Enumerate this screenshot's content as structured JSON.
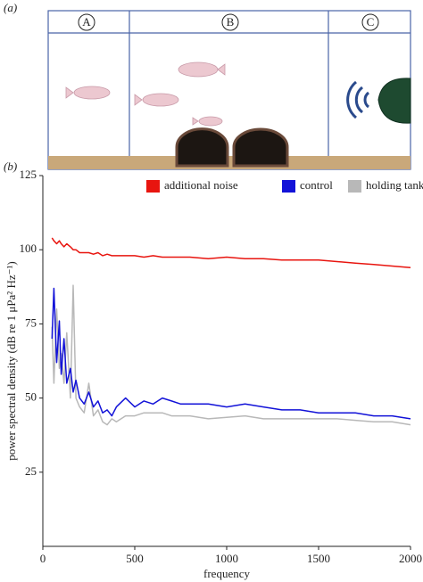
{
  "panel_labels": [
    "(a)",
    "(b)"
  ],
  "tank_sections": [
    "A",
    "B",
    "C"
  ],
  "chart_data": {
    "type": "line",
    "x_label": "frequency",
    "y_label": "power spectral density (dB re 1 μPa² Hz⁻¹)",
    "x": [
      50,
      60,
      75,
      90,
      100,
      115,
      130,
      150,
      165,
      180,
      200,
      225,
      250,
      275,
      300,
      325,
      350,
      375,
      400,
      450,
      500,
      550,
      600,
      650,
      700,
      750,
      800,
      900,
      1000,
      1100,
      1200,
      1300,
      1400,
      1500,
      1600,
      1700,
      1800,
      1900,
      2000
    ],
    "series": [
      {
        "name": "additional noise",
        "color": "#e8150f",
        "values": [
          104,
          103,
          102,
          103,
          102,
          101,
          102,
          101,
          100,
          100,
          99,
          99,
          99,
          98.5,
          99,
          98,
          98.5,
          98,
          98,
          98,
          98,
          97.5,
          98,
          97.5,
          97.5,
          97.5,
          97.5,
          97,
          97.5,
          97,
          97,
          96.5,
          96.5,
          96.5,
          96,
          95.5,
          95,
          94.5,
          94
        ]
      },
      {
        "name": "control",
        "color": "#1212d8",
        "values": [
          70,
          87,
          62,
          76,
          58,
          70,
          55,
          60,
          52,
          56,
          50,
          48,
          52,
          47,
          49,
          45,
          46,
          44,
          47,
          50,
          47,
          49,
          48,
          50,
          49,
          48,
          48,
          48,
          47,
          48,
          47,
          46,
          46,
          45,
          45,
          45,
          44,
          44,
          43
        ]
      },
      {
        "name": "holding tank",
        "color": "#b8b8b8",
        "values": [
          74,
          55,
          80,
          60,
          65,
          55,
          72,
          50,
          88,
          50,
          47,
          45,
          55,
          44,
          46,
          42,
          41,
          43,
          42,
          44,
          44,
          45,
          45,
          45,
          44,
          44,
          44,
          43,
          43.5,
          44,
          43,
          43,
          43,
          43,
          43,
          42.5,
          42,
          42,
          41
        ]
      }
    ],
    "xlim": [
      0,
      2000
    ],
    "xticks": [
      0,
      500,
      1000,
      1500,
      2000
    ],
    "ylim": [
      0,
      125
    ],
    "yticks": [
      25,
      50,
      75,
      100,
      125
    ],
    "legend": "top-right"
  }
}
